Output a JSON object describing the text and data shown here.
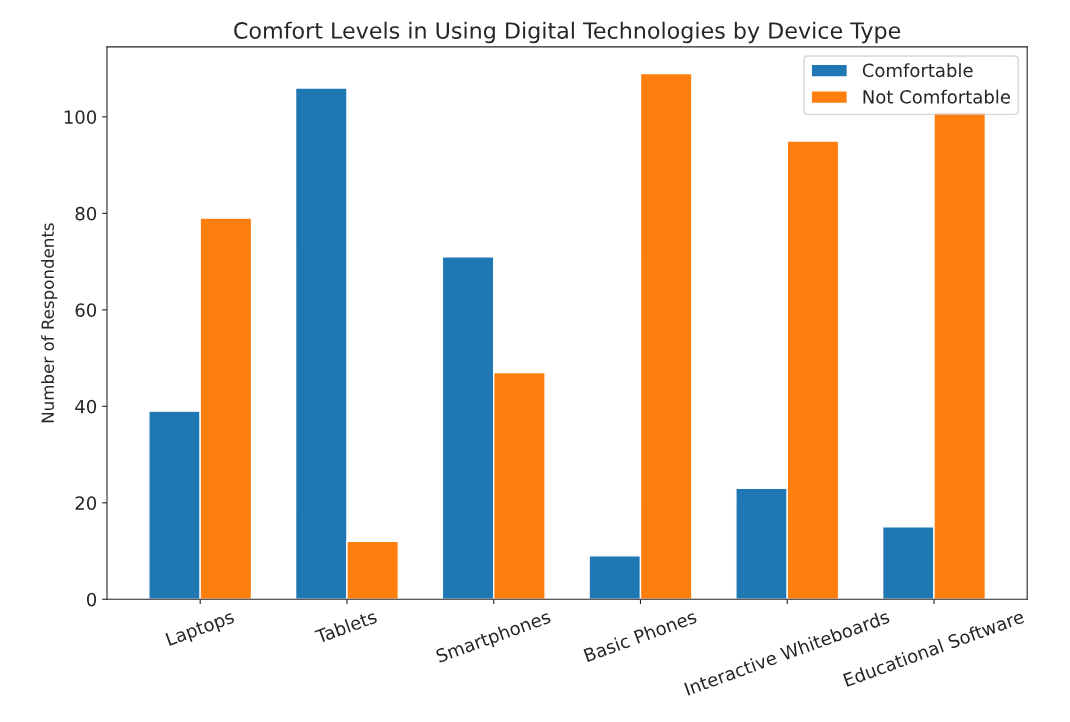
{
  "chart_data": {
    "type": "bar",
    "title": "Comfort Levels in Using Digital Technologies by Device Type",
    "ylabel": "Number of Respondents",
    "categories": [
      "Laptops",
      "Tablets",
      "Smartphones",
      "Basic Phones",
      "Interactive Whiteboards",
      "Educational Software"
    ],
    "series": [
      {
        "name": "Comfortable",
        "color": "#1f77b4",
        "values": [
          39,
          106,
          71,
          9,
          23,
          15
        ]
      },
      {
        "name": "Not Comfortable",
        "color": "#ff7f0e",
        "values": [
          79,
          12,
          47,
          109,
          95,
          101
        ]
      }
    ],
    "ylim": [
      0,
      114.5
    ],
    "yticks": [
      0,
      20,
      40,
      60,
      80,
      100
    ],
    "legend": "upper right",
    "grid": false
  }
}
